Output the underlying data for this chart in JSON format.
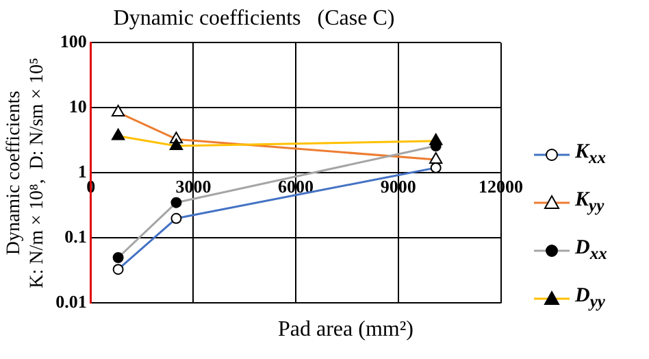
{
  "chart_data": {
    "type": "line",
    "title": "Dynamic coefficients   (Case C)",
    "xlabel": "Pad area  (mm²)",
    "ylabel": "Dynamic coefficients\nK: N/m × 10⁸,  D: N/sm × 10⁵",
    "x": [
      800,
      2500,
      10100
    ],
    "series": [
      {
        "name": "K$_{xx}$",
        "color": "#4472c4",
        "marker": "circle",
        "values": [
          0.033,
          0.2,
          1.2
        ]
      },
      {
        "name": "K$_{yy}$",
        "color": "#ed7d31",
        "marker": "triangle",
        "values": [
          8.5,
          3.3,
          1.6
        ]
      },
      {
        "name": "D$_{xx}$",
        "color": "#a5a5a5",
        "marker": "circle",
        "values": [
          0.05,
          0.35,
          2.6
        ]
      },
      {
        "name": "D$_{yy}$",
        "color": "#ffc000",
        "marker": "triangle",
        "values": [
          3.7,
          2.6,
          3.1
        ]
      }
    ],
    "xlim": [
      0,
      12000
    ],
    "xticks": [
      0,
      3000,
      6000,
      9000,
      12000
    ],
    "ylim": [
      0.01,
      100
    ],
    "yticks": [
      0.01,
      0.1,
      1,
      10,
      100
    ],
    "log": "y",
    "grid": true,
    "legend": "right"
  }
}
